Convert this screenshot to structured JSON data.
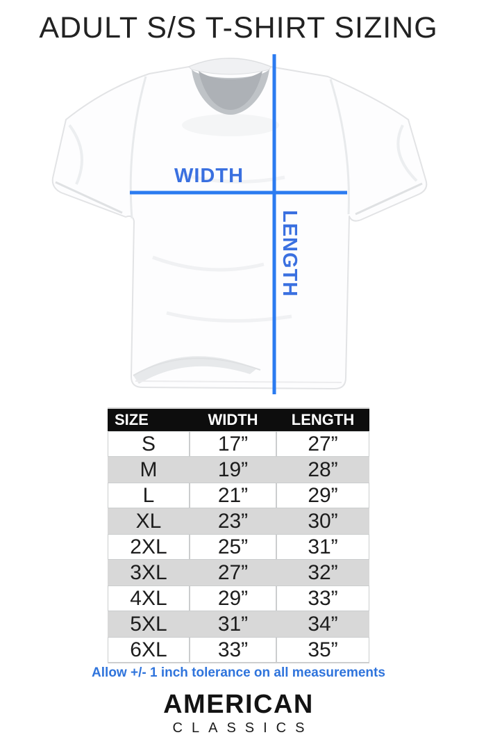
{
  "title": "ADULT S/S T-SHIRT SIZING",
  "diagram": {
    "width_label": "WIDTH",
    "length_label": "LENGTH",
    "line_color": "#2b7bf0",
    "label_color": "#3a70e0"
  },
  "table": {
    "headers": [
      "SIZE",
      "WIDTH",
      "LENGTH"
    ],
    "rows": [
      [
        "S",
        "17”",
        "27”"
      ],
      [
        "M",
        "19”",
        "28”"
      ],
      [
        "L",
        "21”",
        "29”"
      ],
      [
        "XL",
        "23”",
        "30”"
      ],
      [
        "2XL",
        "25”",
        "31”"
      ],
      [
        "3XL",
        "27”",
        "32”"
      ],
      [
        "4XL",
        "29”",
        "33”"
      ],
      [
        "5XL",
        "31”",
        "34”"
      ],
      [
        "6XL",
        "33”",
        "35”"
      ]
    ],
    "header_bg": "#0d0d0d",
    "alt_row_bg": "#d8d8d8"
  },
  "footer": {
    "tolerance_note": "Allow +/- 1 inch tolerance on all measurements",
    "note_color": "#2f74dc"
  },
  "brand": {
    "line1": "AMERICAN",
    "line2": "CLASSICS"
  }
}
